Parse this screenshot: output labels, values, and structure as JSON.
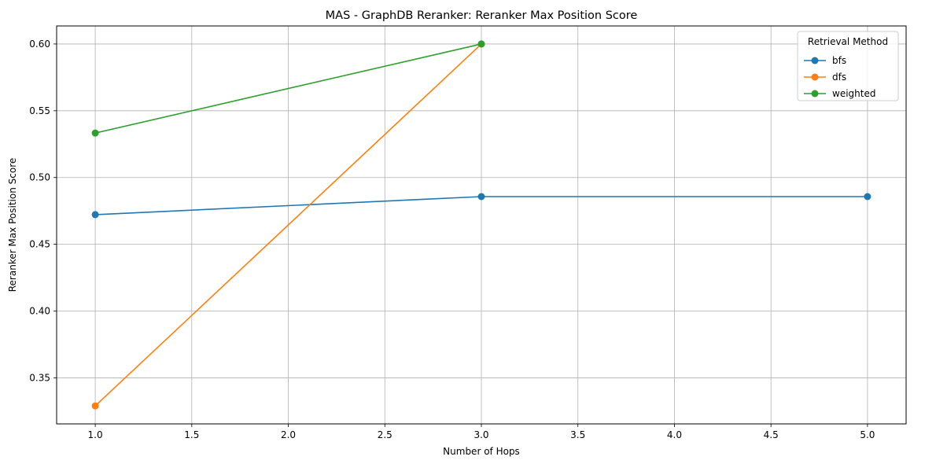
{
  "chart_data": {
    "type": "line",
    "title": "MAS - GraphDB Reranker: Reranker Max Position Score",
    "xlabel": "Number of Hops",
    "ylabel": "Reranker Max Position Score",
    "xlim": [
      0.8,
      5.2
    ],
    "ylim": [
      0.3155,
      0.6135
    ],
    "xticks": [
      "1.0",
      "1.5",
      "2.0",
      "2.5",
      "3.0",
      "3.5",
      "4.0",
      "4.5",
      "5.0"
    ],
    "yticks": [
      "0.35",
      "0.40",
      "0.45",
      "0.50",
      "0.55",
      "0.60"
    ],
    "grid": true,
    "legend": {
      "title": "Retrieval Method",
      "placement": "top-right"
    },
    "series": [
      {
        "name": "bfs",
        "color": "#1f77b4",
        "x": [
          1,
          3,
          5
        ],
        "y": [
          0.4722,
          0.4857,
          0.4857
        ]
      },
      {
        "name": "dfs",
        "color": "#ff7f0e",
        "x": [
          1,
          3
        ],
        "y": [
          0.329,
          0.6
        ]
      },
      {
        "name": "weighted",
        "color": "#2ca02c",
        "x": [
          1,
          3
        ],
        "y": [
          0.5333,
          0.6
        ]
      }
    ]
  }
}
